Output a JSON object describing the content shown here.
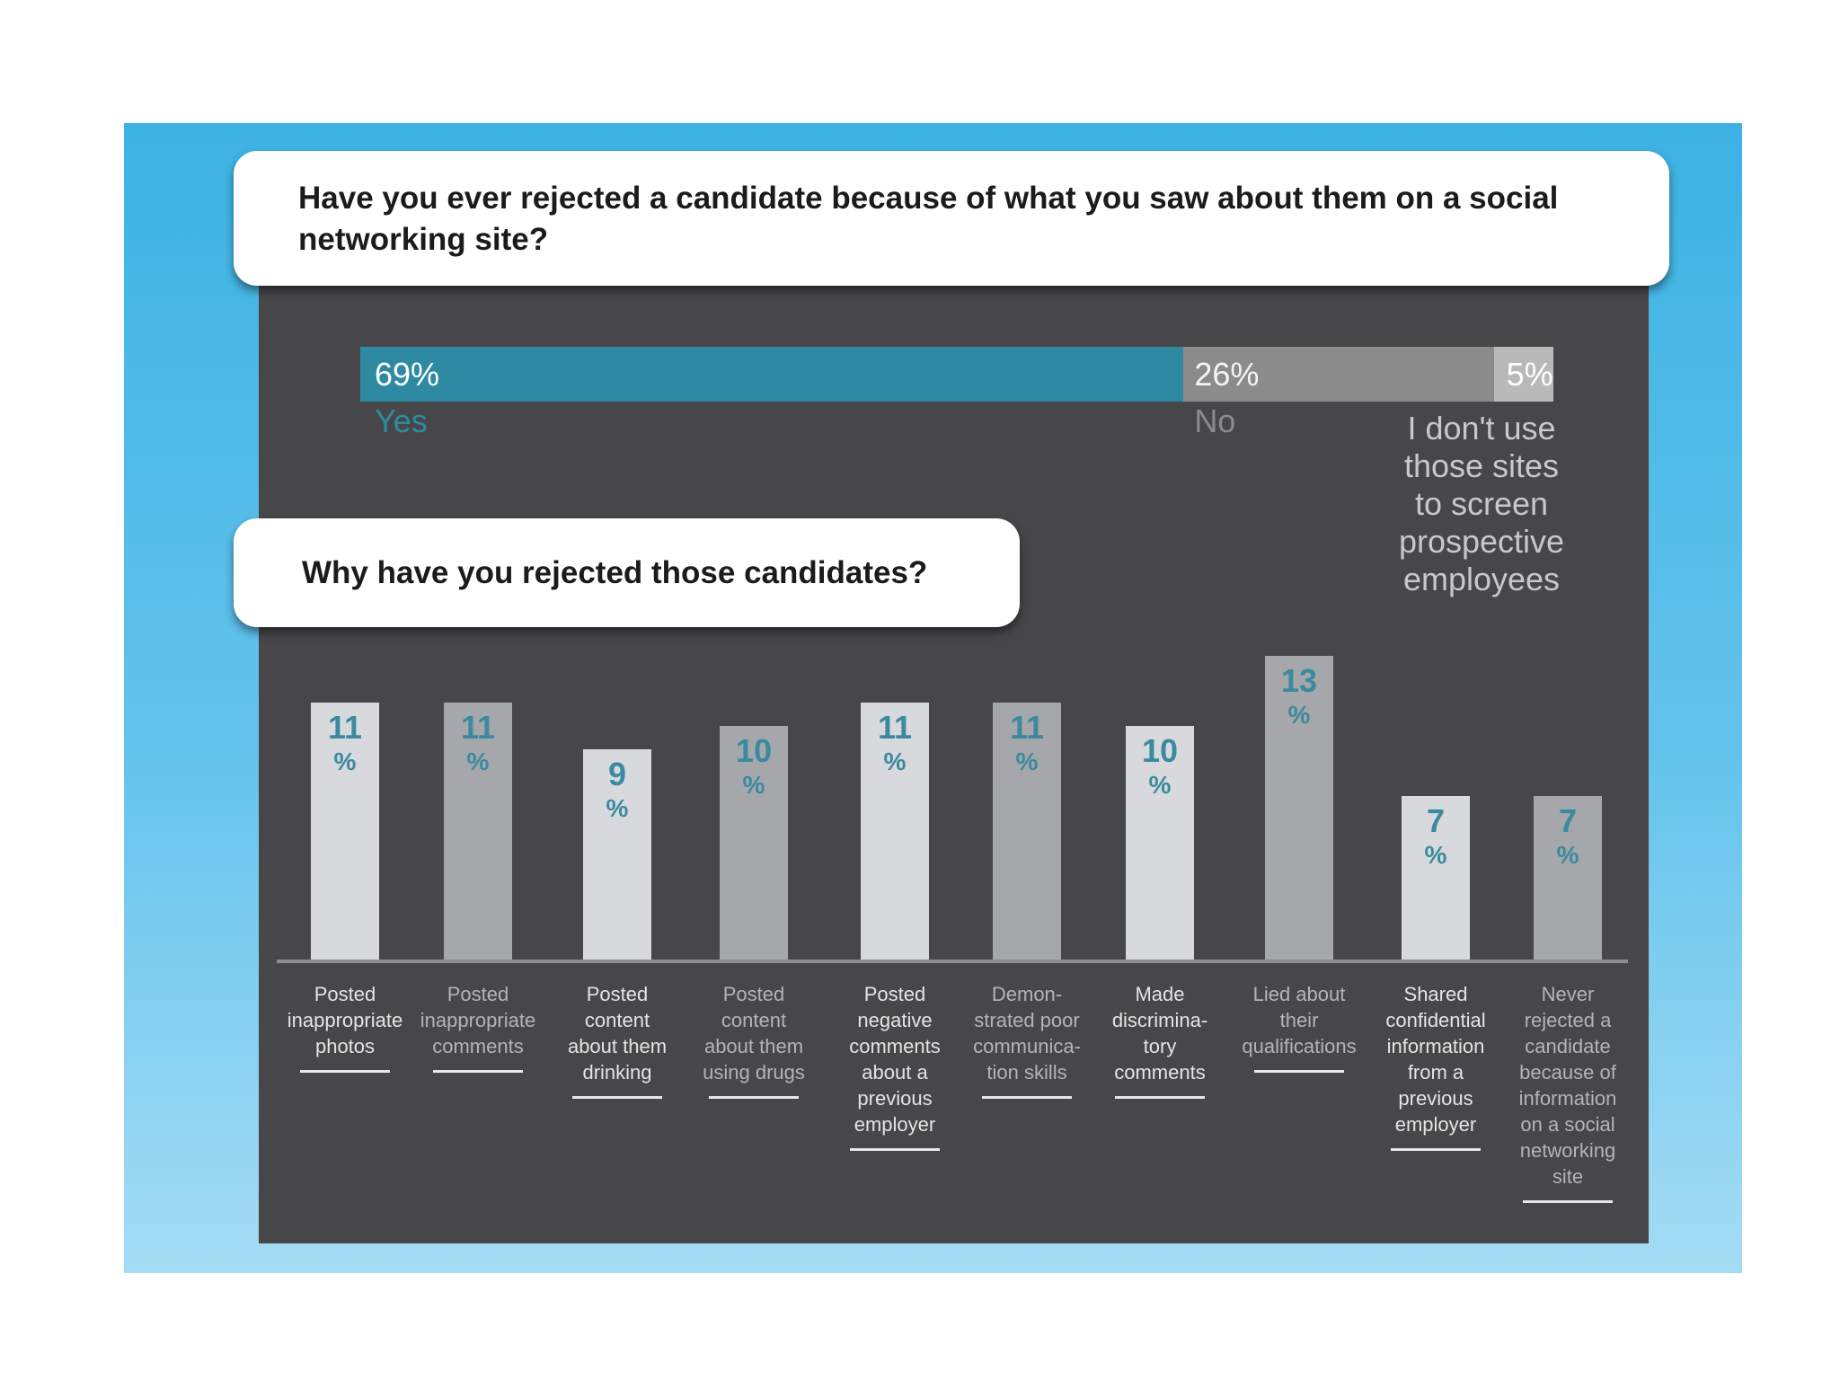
{
  "question1": "Have you ever rejected a candidate because of what you saw about them on a social networking site?",
  "question2": "Why have you rejected those candidates?",
  "colors": {
    "bg_top": "#3cb2e3",
    "panel": "#47474a",
    "yes": "#2e8aa3",
    "no": "#8b8b8c",
    "other": "#b9b9ba",
    "bar_light": "#d8d9dc",
    "bar_dark": "#a6a7aa",
    "accent_text": "#3a8aa0"
  },
  "summary": {
    "yes": {
      "value": 69,
      "pct_text": "69%",
      "label": "Yes"
    },
    "no": {
      "value": 26,
      "pct_text": "26%",
      "label": "No"
    },
    "other": {
      "value": 5,
      "pct_text": "5%",
      "label_lines": [
        "I don't use",
        "those sites",
        "to screen",
        "prospective",
        "employees"
      ]
    }
  },
  "chart_data": {
    "type": "bar",
    "title": "Why have you rejected those candidates?",
    "ylabel": "",
    "ylim": [
      0,
      15
    ],
    "categories": [
      "Posted inappropriate photos",
      "Posted inappropriate comments",
      "Posted content about them drinking",
      "Posted content about them using drugs",
      "Posted negative comments about a previous employer",
      "Demonstrated poor communication skills",
      "Made discriminatory comments",
      "Lied about their qualifications",
      "Shared confidential information from a previous employer",
      "Never rejected a candidate because of information on a social networking site"
    ],
    "category_lines": [
      [
        "Posted",
        "inappropriate",
        "photos"
      ],
      [
        "Posted",
        "inappropriate",
        "comments"
      ],
      [
        "Posted",
        "content",
        "about them",
        "drinking"
      ],
      [
        "Posted",
        "content",
        "about them",
        "using drugs"
      ],
      [
        "Posted",
        "negative",
        "comments",
        "about a",
        "previous",
        "employer"
      ],
      [
        "Demon-",
        "strated poor",
        "communica-",
        "tion skills"
      ],
      [
        "Made",
        "discrimina-",
        "tory",
        "comments"
      ],
      [
        "Lied about",
        "their",
        "qualifications"
      ],
      [
        "Shared",
        "confidential",
        "information",
        "from a",
        "previous",
        "employer"
      ],
      [
        "Never",
        "rejected a",
        "candidate",
        "because of",
        "information",
        "on a social",
        "networking",
        "site"
      ]
    ],
    "values": [
      11,
      11,
      9,
      10,
      11,
      11,
      10,
      13,
      7,
      7
    ],
    "value_suffix": "%"
  }
}
